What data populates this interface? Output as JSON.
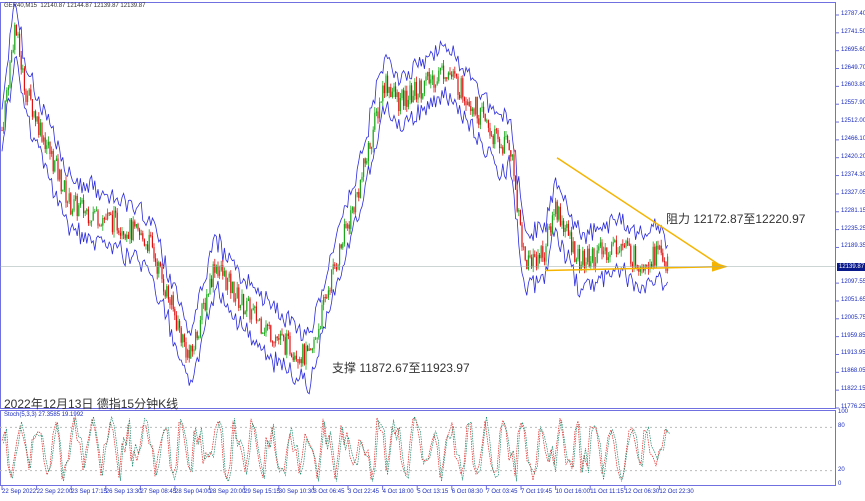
{
  "header": {
    "symbol": "GER40,M15",
    "ohlc": "12140.87 12144.87 12139.87 12139.87"
  },
  "stoch": {
    "label": "Stoch(5,3,3) 27.3585 19.1992",
    "levels": [
      "100",
      "80",
      "20",
      "0"
    ]
  },
  "annotations": {
    "resistance": "阻力 12172.87至12220.97",
    "support": "支撑 11872.67至11923.97",
    "caption": "2022年12月13日 德指15分钟K线"
  },
  "current_price": "12139.87",
  "colors": {
    "band": "#2b2bdc",
    "bull": "#1aa81a",
    "bear": "#e01010",
    "trend": "#f5b400",
    "axis": "#7070e0"
  },
  "chart_data": {
    "type": "candlestick",
    "yticks": [
      "12787.40",
      "12741.50",
      "12695.60",
      "12649.70",
      "12603.80",
      "12557.90",
      "12512.00",
      "12466.10",
      "12420.20",
      "12374.30",
      "12327.05",
      "12281.15",
      "12235.25",
      "12189.35",
      "12097.55",
      "12051.65",
      "12005.75",
      "11959.85",
      "11913.95",
      "11868.05",
      "11822.15",
      "11776.25"
    ],
    "ylim": [
      11776.25,
      12787.4
    ],
    "xticks": [
      "22 Sep 2022",
      "22 Sep 22:00",
      "23 Sep 17:15",
      "26 Sep 13:30",
      "27 Sep 08:45",
      "28 Sep 04:00",
      "28 Sep 20:00",
      "29 Sep 15:15",
      "30 Sep 10:30",
      "3 Oct 06:45",
      "3 Oct 22:45",
      "4 Oct 18:00",
      "5 Oct 13:15",
      "6 Oct 08:30",
      "7 Oct 03:45",
      "7 Oct 19:45",
      "10 Oct 16:00",
      "11 Oct 11:15",
      "12 Oct 06:30",
      "12 Oct 22:30"
    ],
    "approx_close_path": [
      12450,
      12760,
      12600,
      12300,
      12250,
      12200,
      11900,
      12150,
      12050,
      11950,
      11900,
      12100,
      12350,
      12620,
      12560,
      12600,
      12650,
      12570,
      12450,
      12460,
      12150,
      12180,
      12300,
      12150,
      12200,
      12150,
      12180,
      12140
    ],
    "trendlines": [
      {
        "from": 12420,
        "to": 12140
      },
      {
        "from": 12130,
        "to": 12140
      }
    ]
  }
}
